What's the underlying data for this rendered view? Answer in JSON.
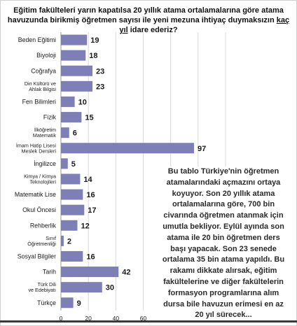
{
  "title": {
    "part1": "Eğitim fakülteleri yarın kapatılsa 20 yıllık atama ortalamalarına göre atama havuzunda birikmiş öğretmen sayısı ile yeni mezuna ihtiyaç duymaksızın ",
    "emphasis": "kaç yıl",
    "part2": " idare ederiz?"
  },
  "note": "Bu tablo Türkiye'nin öğretmen atamalarındaki açmazını ortaya koyuyor. Son 20 yıllık atama ortalamalarına göre, 700 bin civarında öğretmen atanmak için umutla bekliyor. Eylül ayında son atama ile 20 bin öğretmen ders başı yapacak. Son 23 senede ortalama 35 bin atama yapıldı. Bu rakamı dikkate alırsak, eğitim fakültelerine ve diğer fakültelerin formasyon programlarına alım dursa bile havuzun erimesi en az 20 yıl sürecek...",
  "chart_data": {
    "type": "bar",
    "orientation": "horizontal",
    "categories": [
      "Beden Eğitimi",
      "Biyoloji",
      "Coğrafya",
      "Din Kültürü ve Ahlak Bilgisi",
      "Fen Bilimleri",
      "Fizik",
      "İlköğretim Matematik",
      "İmam Hatip Lisesi Meslek Dersleri",
      "İngilizce",
      "Kimya / Kimya Teknolojileri",
      "Matematik Lise",
      "Okul Öncesi",
      "Rehberlik",
      "Sınıf Öğretmenliği",
      "Sosyal Bilgiler",
      "Tarih",
      "Türk Dili ve Edebiyatı",
      "Türkçe"
    ],
    "values": [
      19,
      18,
      23,
      23,
      10,
      15,
      6,
      97,
      5,
      14,
      16,
      17,
      12,
      2,
      16,
      42,
      30,
      9
    ],
    "xlim": [
      0,
      120
    ],
    "xticks": [
      0,
      20,
      40,
      60,
      80,
      100,
      120
    ],
    "grid": true,
    "bar_color": "#7f7fb8",
    "grid_color": "#d8d8d8"
  }
}
